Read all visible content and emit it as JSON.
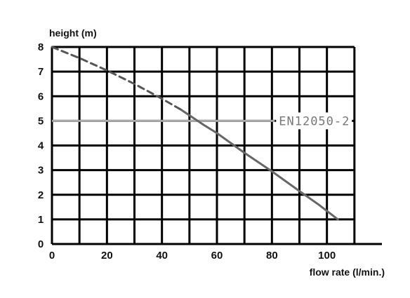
{
  "chart_data": {
    "type": "line",
    "title": "",
    "xlabel": "flow rate (l/min.)",
    "ylabel": "height (m)",
    "xlim": [
      0,
      120
    ],
    "ylim": [
      0,
      8
    ],
    "x_ticks": [
      "0",
      "20",
      "40",
      "60",
      "80",
      "100"
    ],
    "y_ticks": [
      "0",
      "1",
      "2",
      "3",
      "4",
      "5",
      "6",
      "7",
      "8"
    ],
    "grid": true,
    "series": [
      {
        "style": "dashed",
        "color": "#555555",
        "x": [
          0,
          10,
          20,
          30,
          40,
          47
        ],
        "y": [
          8.0,
          7.55,
          7.05,
          6.5,
          5.9,
          5.45
        ]
      },
      {
        "style": "solid",
        "color": "#666666",
        "x": [
          47,
          55,
          60,
          70,
          80,
          90,
          97,
          104
        ],
        "y": [
          5.45,
          4.85,
          4.5,
          3.7,
          2.95,
          2.15,
          1.6,
          1.0
        ]
      }
    ],
    "reference_lines": [
      {
        "y": 5,
        "label": "EN12050-2",
        "color": "#aaaaaa"
      }
    ]
  }
}
